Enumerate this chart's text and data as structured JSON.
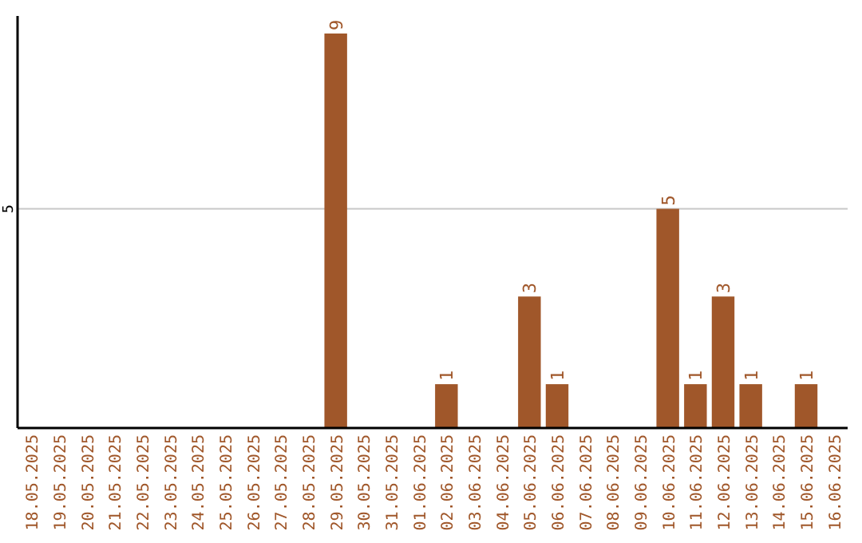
{
  "chart_data": {
    "type": "bar",
    "categories": [
      "18.05.2025",
      "19.05.2025",
      "20.05.2025",
      "21.05.2025",
      "22.05.2025",
      "23.05.2025",
      "24.05.2025",
      "25.05.2025",
      "26.05.2025",
      "27.05.2025",
      "28.05.2025",
      "29.05.2025",
      "30.05.2025",
      "31.05.2025",
      "01.06.2025",
      "02.06.2025",
      "03.06.2025",
      "04.06.2025",
      "05.06.2025",
      "06.06.2025",
      "07.06.2025",
      "08.06.2025",
      "09.06.2025",
      "10.06.2025",
      "11.06.2025",
      "12.06.2025",
      "13.06.2025",
      "14.06.2025",
      "15.06.2025",
      "16.06.2025"
    ],
    "values": [
      0,
      0,
      0,
      0,
      0,
      0,
      0,
      0,
      0,
      0,
      0,
      9,
      0,
      0,
      0,
      1,
      0,
      0,
      3,
      1,
      0,
      0,
      0,
      5,
      1,
      3,
      1,
      0,
      1,
      0
    ],
    "value_labels": [
      null,
      null,
      null,
      null,
      null,
      null,
      null,
      null,
      null,
      null,
      null,
      "9",
      null,
      null,
      null,
      "1",
      null,
      null,
      "3",
      "1",
      null,
      null,
      null,
      "5",
      "1",
      "3",
      "1",
      null,
      "1",
      null
    ],
    "color": "#a0572a",
    "ylim": [
      0,
      9.4
    ],
    "yticks": [
      5
    ],
    "grid": "y"
  }
}
